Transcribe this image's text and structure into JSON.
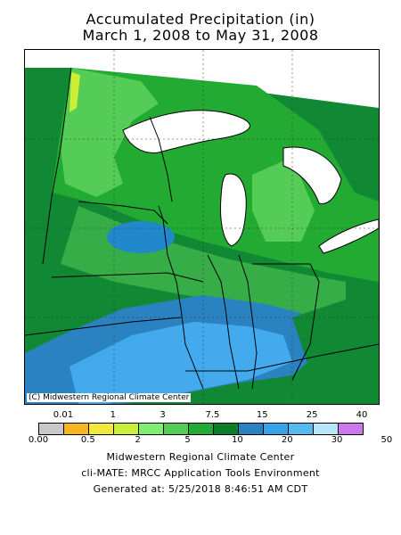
{
  "title": {
    "line1": "Accumulated Precipitation (in)",
    "line2": "March 1, 2008 to May 31, 2008"
  },
  "map": {
    "copyright": "(C) Midwestern Regional Climate Center",
    "colors": {
      "water": "#ffffff",
      "light_green": "#66cc55",
      "green": "#22aa33",
      "dark_green": "#118833",
      "blue": "#2288cc",
      "light_blue": "#44aaee",
      "yellow": "#ccee33"
    }
  },
  "legend": {
    "top_labels": [
      "0.01",
      "1",
      "3",
      "7.5",
      "15",
      "25",
      "40"
    ],
    "bottom_labels": [
      "0.00",
      "0.5",
      "2",
      "5",
      "10",
      "20",
      "30",
      "50"
    ],
    "colors": [
      "#c8c8c8",
      "#f7b520",
      "#f3e93a",
      "#c8f03a",
      "#80ee70",
      "#55cc55",
      "#22aa33",
      "#0d7f2b",
      "#2b82c0",
      "#3aa2e6",
      "#55bbee",
      "#b8e4fa",
      "#cc77ee"
    ]
  },
  "footer": {
    "line1": "Midwestern Regional Climate Center",
    "line2": "cli-MATE: MRCC Application Tools Environment",
    "line3": "Generated at: 5/25/2018 8:46:51 AM CDT"
  }
}
